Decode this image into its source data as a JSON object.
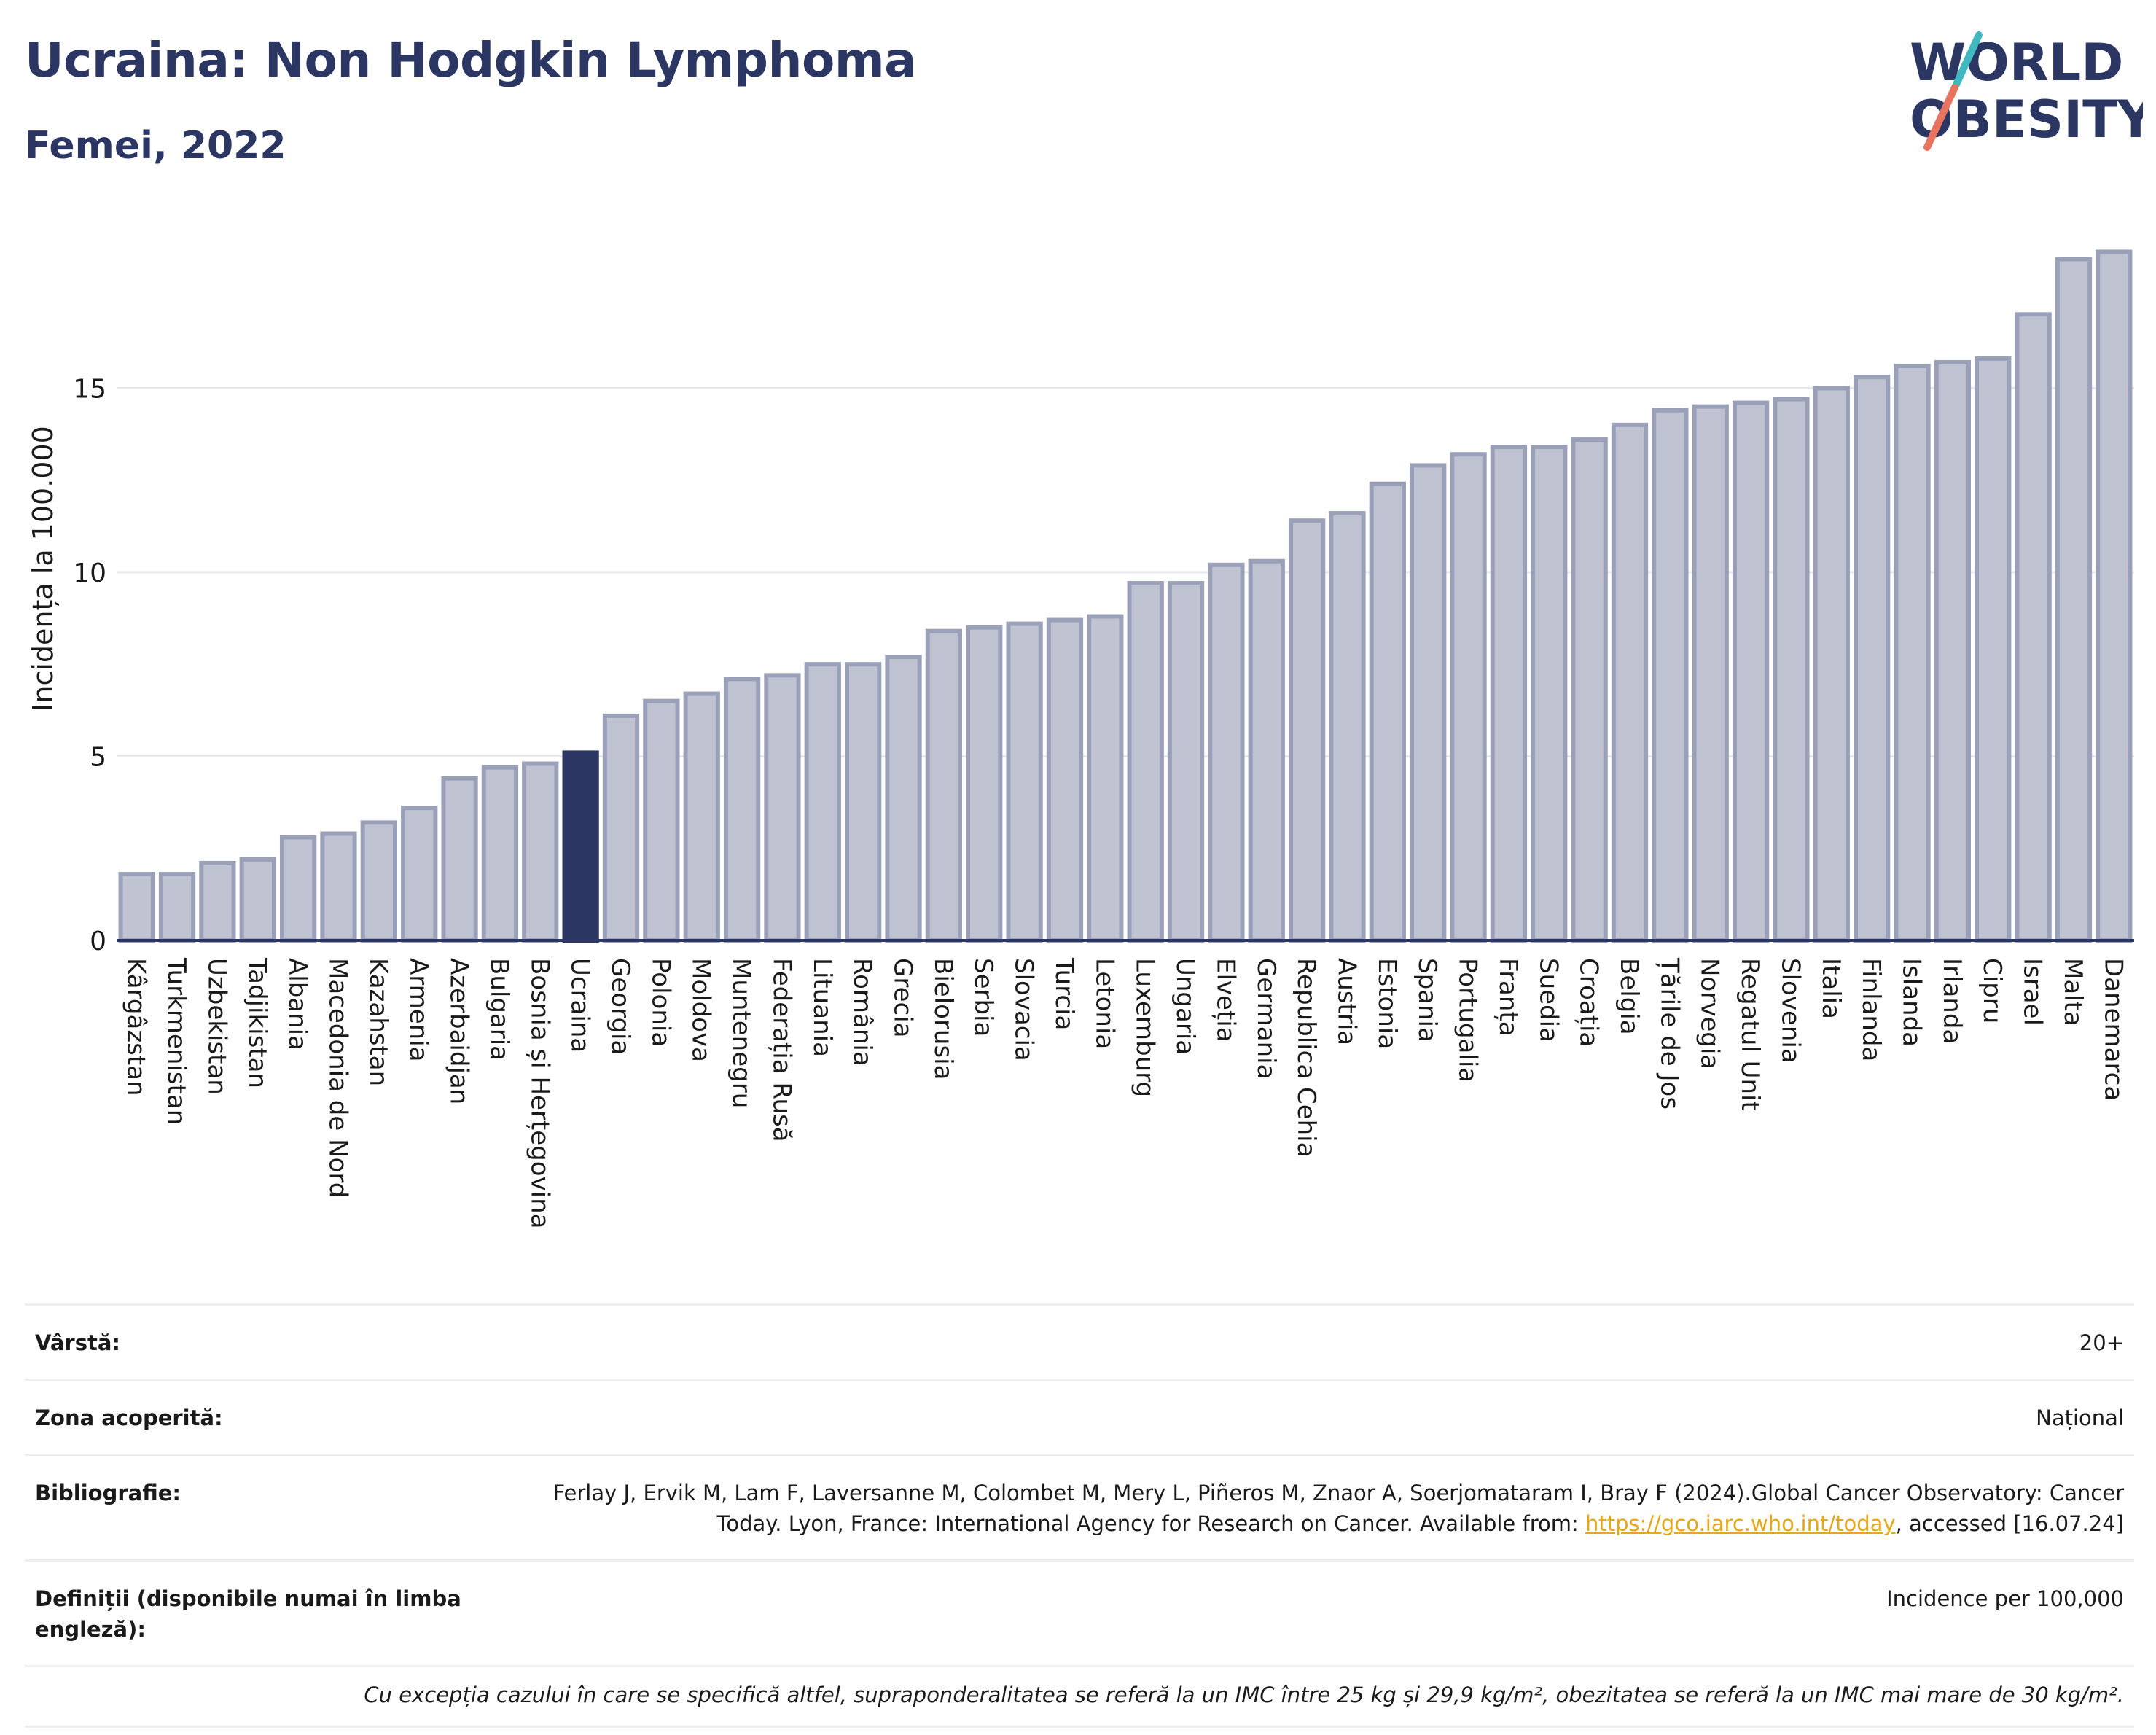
{
  "header": {
    "title": "Ucraina: Non Hodgkin Lymphoma",
    "subtitle": "Femei, 2022",
    "logo_line1": "WORLD",
    "logo_line2": "OBESITY"
  },
  "colors": {
    "bar": "#bfc3d1",
    "bar_border": "#9aa0b8",
    "highlight": "#2b3663",
    "grid": "#e6e8ee",
    "axis": "#2b3663",
    "logo_teal": "#3fb8c0",
    "logo_coral": "#e8735f"
  },
  "chart_data": {
    "type": "bar",
    "title": "Ucraina: Non Hodgkin Lymphoma",
    "subtitle": "Femei, 2022",
    "ylabel": "Incidența la 100.000",
    "ylim": [
      0,
      19.6
    ],
    "yticks": [
      0,
      5,
      10,
      15
    ],
    "grid": true,
    "highlight": "Ucraina",
    "categories": [
      "Kârgâzstan",
      "Turkmenistan",
      "Uzbekistan",
      "Tadjikistan",
      "Albania",
      "Macedonia de Nord",
      "Kazahstan",
      "Armenia",
      "Azerbaidjan",
      "Bulgaria",
      "Bosnia și Herțegovina",
      "Ucraina",
      "Georgia",
      "Polonia",
      "Moldova",
      "Muntenegru",
      "Federația Rusă",
      "Lituania",
      "România",
      "Grecia",
      "Bielorusia",
      "Serbia",
      "Slovacia",
      "Turcia",
      "Letonia",
      "Luxemburg",
      "Ungaria",
      "Elveția",
      "Germania",
      "Republica Cehia",
      "Austria",
      "Estonia",
      "Spania",
      "Portugalia",
      "Franța",
      "Suedia",
      "Croația",
      "Belgia",
      "Țările de Jos",
      "Norvegia",
      "Regatul Unit",
      "Slovenia",
      "Italia",
      "Finlanda",
      "Islanda",
      "Irlanda",
      "Cipru",
      "Israel",
      "Malta",
      "Danemarca"
    ],
    "values": [
      1.8,
      1.8,
      2.1,
      2.2,
      2.8,
      2.9,
      3.2,
      3.6,
      4.4,
      4.7,
      4.8,
      5.1,
      6.1,
      6.5,
      6.7,
      7.1,
      7.2,
      7.5,
      7.5,
      7.7,
      8.4,
      8.5,
      8.6,
      8.7,
      8.8,
      9.7,
      9.7,
      10.2,
      10.3,
      11.4,
      11.6,
      12.4,
      12.9,
      13.2,
      13.4,
      13.4,
      13.6,
      14.0,
      14.4,
      14.5,
      14.6,
      14.7,
      15.0,
      15.3,
      15.6,
      15.7,
      15.8,
      17.0,
      18.5,
      18.7
    ]
  },
  "meta": {
    "age_label": "Vârstă:",
    "age_value": "20+",
    "area_label": "Zona acoperită:",
    "area_value": "Național",
    "biblio_label": "Bibliografie:",
    "biblio_text": "Ferlay J, Ervik M, Lam F, Laversanne M, Colombet M, Mery L, Piñeros M, Znaor A, Soerjomataram I, Bray F (2024).Global Cancer Observatory: Cancer Today. Lyon, France: International Agency for Research on Cancer. Available from:",
    "biblio_link": "https://gco.iarc.who.int/today",
    "biblio_suffix": ", accessed [16.07.24]",
    "definitions_label": "Definiții (disponibile numai în limba engleză):",
    "definitions_value": "Incidence per 100,000",
    "note": "Cu excepția cazului în care se specifică altfel, supraponderalitatea se referă la un IMC între 25 kg și 29,9 kg/m², obezitatea se referă la un IMC mai mare de 30 kg/m²."
  }
}
